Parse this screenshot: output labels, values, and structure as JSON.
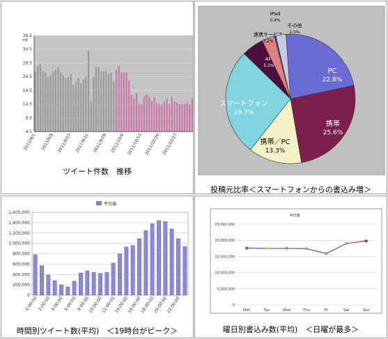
{
  "panels": {
    "tweets": {
      "caption": "ツイート件数　推移"
    },
    "sources": {
      "caption": "投稿元比率＜スマートフォンからの書込み増＞"
    },
    "hourly": {
      "caption": "時間別ツイート数(平均)　＜19時台がピーク＞"
    },
    "weekday": {
      "caption": "曜日別書込み数(平均)　＜日曜が最多＞"
    }
  },
  "chart_data": [
    {
      "type": "bar",
      "title": "",
      "ylabel": "件数",
      "ylim": [
        4.5,
        39.5
      ],
      "yticks": [
        4.5,
        9.5,
        14.5,
        19.5,
        24.5,
        29.5,
        34.5,
        39.5
      ],
      "xticks": [
        "2011/9/1",
        "2011/9/8",
        "2011/9/15",
        "2011/9/22",
        "2011/9/29",
        "2011/10/6",
        "2011/10/13",
        "2011/10/20",
        "2011/10/27"
      ],
      "series": [
        {
          "color": "#9a9a9a",
          "start_date": "2011/9/1",
          "values": [
            26.5,
            28.5,
            29,
            26.5,
            26,
            24.5,
            25,
            26.5,
            27,
            28,
            26,
            25,
            24,
            24.5,
            25.5,
            21.5,
            22.5,
            24,
            22,
            23.5,
            24.5,
            34,
            15.5,
            24.5,
            28,
            28,
            26.5,
            26.5,
            26.5,
            25.5,
            26,
            22.5
          ]
        },
        {
          "color": "#cc79a7",
          "start_date": "2011/10/3",
          "values": [
            27,
            28.5,
            26,
            26,
            26,
            23,
            18,
            16.5,
            18.5,
            14.5,
            14.5,
            17.5,
            18,
            17,
            15.5,
            17,
            15,
            14.5,
            14.5,
            15.5,
            16.5,
            14.5,
            17,
            15.5,
            15,
            14.5,
            14.5,
            14.5,
            15,
            14.5,
            16.5,
            17,
            14.5
          ]
        }
      ]
    },
    {
      "type": "pie",
      "slices": [
        {
          "label": "PC",
          "value": 22.8,
          "text": "22.8%",
          "color": "#6b6bd6"
        },
        {
          "label": "携帯",
          "value": 25.6,
          "text": "25.6%",
          "color": "#7a1f4a"
        },
        {
          "label": "携帯／PC",
          "value": 13.3,
          "text": "13.3%",
          "color": "#f5f2c8"
        },
        {
          "label": "スマートフォン",
          "value": 26.7,
          "text": "26.7%",
          "color": "#7fd4e0"
        },
        {
          "label": "API",
          "value": 5.5,
          "text": "5.5%",
          "color": "#4a0f3d"
        },
        {
          "label": "連携サービス",
          "value": 3.2,
          "text": "3.2%",
          "color": "#e08080"
        },
        {
          "label": "iPad",
          "value": 0.4,
          "text": "0.4%",
          "color": "#2a4f8f"
        },
        {
          "label": "その他",
          "value": 2.5,
          "text": "2.5%",
          "color": "#c7cbe0"
        }
      ]
    },
    {
      "type": "bar",
      "legend": "平均値",
      "ylim": [
        0,
        1600000
      ],
      "yticks": [
        "0",
        "200,000",
        "400,000",
        "600,000",
        "800,000",
        "1,000,000",
        "1,200,000",
        "1,400,000",
        "1,600,000"
      ],
      "xticks": [
        "0:00:00",
        "2:00:00",
        "4:00:00",
        "6:00:00",
        "8:00:00",
        "10:00:00",
        "12:00:00",
        "14:00:00",
        "16:00:00",
        "18:00:00",
        "20:00:00",
        "22:00:00"
      ],
      "values": [
        780000,
        570000,
        390000,
        280000,
        200000,
        160000,
        270000,
        430000,
        470000,
        440000,
        420000,
        440000,
        620000,
        800000,
        930000,
        960000,
        1090000,
        1250000,
        1380000,
        1440000,
        1420000,
        1280000,
        1090000,
        940000
      ]
    },
    {
      "type": "line",
      "legend": "平均値",
      "ylim": [
        0,
        25000000
      ],
      "yticks": [
        "0",
        "5,000,000",
        "10,000,000",
        "15,000,000",
        "20,000,000",
        "25,000,000"
      ],
      "categories": [
        "Mon",
        "Tue",
        "Wed",
        "Thu",
        "Fri",
        "Sat",
        "Sun"
      ],
      "values": [
        17600000,
        17500000,
        17500000,
        17400000,
        15900000,
        19000000,
        19800000
      ],
      "marker_colors": [
        "#6a4ba6",
        "#f0d000",
        "#3fb6d9",
        "#a0a0a0",
        "#e08030",
        "#90a0d8",
        "#c02020"
      ]
    }
  ]
}
